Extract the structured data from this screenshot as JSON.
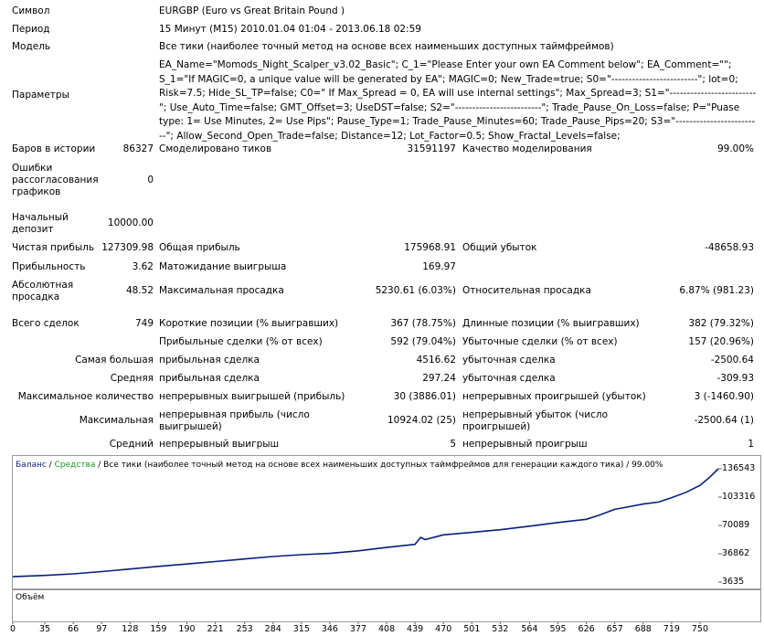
{
  "header": {
    "symbol_label": "Символ",
    "symbol_value": "EURGBP (Euro vs Great Britain Pound )",
    "period_label": "Период",
    "period_value": "15 Минут (M15) 2010.01.04 01:04 - 2013.06.18 02:59",
    "model_label": "Модель",
    "model_value": "Все тики (наиболее точный метод на основе всех наименьших доступных таймфреймов)",
    "params_label": "Параметры",
    "params_value": "EA_Name=\"Momods_Night_Scalper_v3.02_Basic\"; C_1=\"Please Enter your own EA Comment below\"; EA_Comment=\"\"; S_1=\"If MAGIC=0, a unique value will be generated by EA\"; MAGIC=0; New_Trade=true; S0=\"-------------------------\"; lot=0; Risk=7.5; Hide_SL_TP=false; C0=\" If Max_Spread = 0, EA will use internal settings\"; Max_Spread=3; S1=\"-------------------------\"; Use_Auto_Time=false; GMT_Offset=3; UseDST=false; S2=\"-------------------------\"; Trade_Pause_On_Loss=false; P=\"Puase type: 1= Use Minutes, 2= Use Pips\"; Pause_Type=1; Trade_Pause_Minutes=60; Trade_Pause_Pips=20; S3=\"-------------------------\"; Allow_Second_Open_Trade=false; Distance=12; Lot_Factor=0.5; Show_Fractal_Levels=false;"
  },
  "stats": {
    "bars_label": "Баров в истории",
    "bars_value": "86327",
    "ticks_label": "Смоделировано тиков",
    "ticks_value": "31591197",
    "quality_label": "Качество моделирования",
    "quality_value": "99.00%",
    "mismatch_label_1": "Ошибки",
    "mismatch_label_2": "рассогласования",
    "mismatch_label_3": "графиков",
    "mismatch_value": "0",
    "deposit_label_1": "Начальный",
    "deposit_label_2": "депозит",
    "deposit_value": "10000.00",
    "net_label": "Чистая прибыль",
    "net_value": "127309.98",
    "gross_profit_label": "Общая прибыль",
    "gross_profit_value": "175968.91",
    "gross_loss_label": "Общий убыток",
    "gross_loss_value": "-48658.93",
    "pf_label": "Прибыльность",
    "pf_value": "3.62",
    "expected_label": "Матожидание выигрыша",
    "expected_value": "169.97",
    "abs_dd_label_1": "Абсолютная",
    "abs_dd_label_2": "просадка",
    "abs_dd_value": "48.52",
    "max_dd_label": "Максимальная просадка",
    "max_dd_value": "5230.61 (6.03%)",
    "rel_dd_label": "Относительная просадка",
    "rel_dd_value": "6.87% (981.23)",
    "total_label": "Всего сделок",
    "total_value": "749",
    "short_label": "Короткие позиции (% выигравших)",
    "short_value": "367 (78.75%)",
    "long_label": "Длинные позиции (% выигравших)",
    "long_value": "382 (79.32%)",
    "win_label": "Прибыльные сделки (% от всех)",
    "win_value": "592 (79.04%)",
    "loss_label": "Убыточные сделки (% от всех)",
    "loss_value": "157 (20.96%)",
    "largest_label": "Самая большая",
    "largest_win_label": "прибыльная сделка",
    "largest_win_value": "4516.62",
    "largest_loss_label": "убыточная сделка",
    "largest_loss_value": "-2500.64",
    "avg_label": "Средняя",
    "avg_win_label": "прибыльная сделка",
    "avg_win_value": "297.24",
    "avg_loss_label": "убыточная сделка",
    "avg_loss_value": "-309.93",
    "maxcount_label": "Максимальное количество",
    "cons_wins_label": "непрерывных выигрышей (прибыль)",
    "cons_wins_value": "30 (3886.01)",
    "cons_losses_label": "непрерывных проигрышей (убыток)",
    "cons_losses_value": "3 (-1460.90)",
    "maximal_label": "Максимальная",
    "cons_profit_label_1": "непрерывная прибыль (число",
    "cons_profit_label_2": "выигрышей)",
    "cons_profit_value": "10924.02 (25)",
    "cons_loss_label_1": "непрерывный убыток (число",
    "cons_loss_label_2": "проигрышей)",
    "cons_loss_value": "-2500.64 (1)",
    "average_label": "Средний",
    "avg_cons_wins_label": "непрерывный выигрыш",
    "avg_cons_wins_value": "5",
    "avg_cons_losses_label": "непрерывный проигрыш",
    "avg_cons_losses_value": "1"
  },
  "chart_data": {
    "type": "line",
    "legend_balance": "Баланс",
    "legend_sep1": " / ",
    "legend_equity": "Средства",
    "legend_sep2": " / ",
    "legend_desc": "Все тики (наиболее точный метод на основе всех наименьших доступных таймфреймов для генерации каждого тика)",
    "legend_sep3": " / ",
    "legend_quality": "99.00%",
    "volume_label": "Объём",
    "y_ticks": [
      "136543",
      "103316",
      "70089",
      "36862",
      "3635"
    ],
    "y_tick_values": [
      136543,
      103316,
      70089,
      36862,
      3635
    ],
    "x_ticks": [
      "0",
      "35",
      "66",
      "97",
      "128",
      "159",
      "190",
      "221",
      "253",
      "284",
      "315",
      "346",
      "377",
      "408",
      "439",
      "470",
      "501",
      "532",
      "564",
      "595",
      "626",
      "657",
      "688",
      "719",
      "750"
    ],
    "ylim": [
      3635,
      136543
    ],
    "xlim": [
      0,
      770
    ],
    "series": [
      {
        "name": "Баланс",
        "color": "#0a1e7a",
        "x": [
          0,
          35,
          66,
          97,
          128,
          159,
          190,
          221,
          253,
          284,
          315,
          346,
          377,
          408,
          439,
          445,
          450,
          470,
          501,
          532,
          564,
          595,
          626,
          641,
          657,
          672,
          688,
          705,
          719,
          735,
          750,
          760,
          770
        ],
        "y": [
          10000,
          11500,
          13300,
          16000,
          19000,
          22100,
          24900,
          27800,
          30800,
          33600,
          35800,
          37300,
          40300,
          44300,
          47900,
          56000,
          53500,
          59000,
          61900,
          65100,
          69200,
          73500,
          77300,
          82500,
          89000,
          92000,
          95200,
          97500,
          102700,
          109000,
          117000,
          126000,
          136543
        ]
      }
    ],
    "volume": {
      "color": "#22aa22",
      "x": [
        0,
        770
      ],
      "y": [
        0,
        749
      ]
    }
  }
}
